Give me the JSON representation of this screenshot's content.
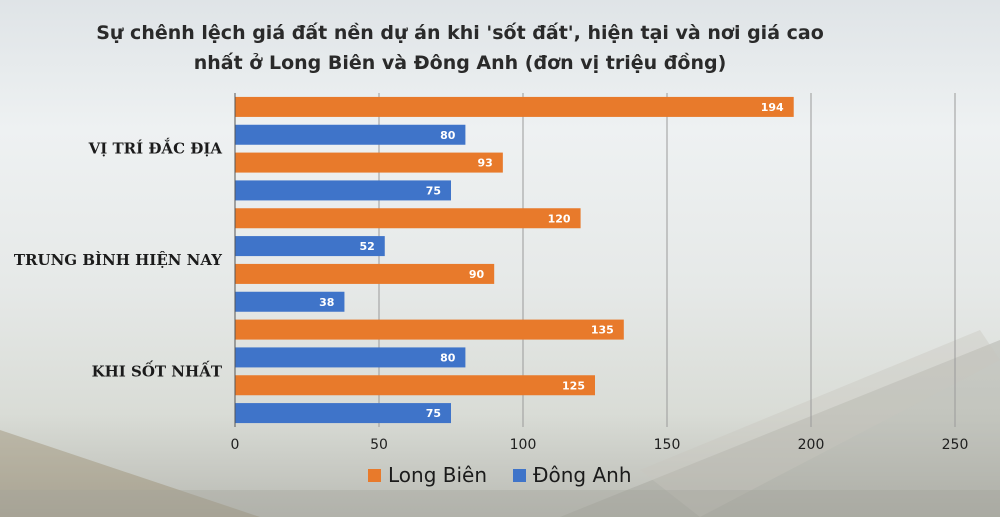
{
  "chart_data": {
    "type": "bar",
    "orientation": "horizontal",
    "title": "Sự chênh lệch giá đất nền dự án khi 'sốt đất', hiện tại và nơi giá cao nhất ở Long Biên và Đông Anh (đơn vị triệu đồng)",
    "category_labels": [
      "VỊ TRÍ ĐẮC ĐỊA",
      "TRUNG BÌNH HIỆN NAY",
      "KHI SỐT NHẤT"
    ],
    "bars": [
      {
        "series": "Long Biên",
        "value": 194
      },
      {
        "series": "Đông Anh",
        "value": 80
      },
      {
        "series": "Long Biên",
        "value": 93
      },
      {
        "series": "Đông Anh",
        "value": 75
      },
      {
        "series": "Long Biên",
        "value": 120
      },
      {
        "series": "Đông Anh",
        "value": 52
      },
      {
        "series": "Long Biên",
        "value": 90
      },
      {
        "series": "Đông Anh",
        "value": 38
      },
      {
        "series": "Long Biên",
        "value": 135
      },
      {
        "series": "Đông Anh",
        "value": 80
      },
      {
        "series": "Long Biên",
        "value": 125
      },
      {
        "series": "Đông Anh",
        "value": 75
      }
    ],
    "xlim": [
      0,
      250
    ],
    "xticks": [
      0,
      50,
      100,
      150,
      200,
      250
    ],
    "grid": "vertical",
    "legend": {
      "placement": "bottom",
      "entries": [
        {
          "name": "Long Biên",
          "color": "#e87a2b"
        },
        {
          "name": "Đông Anh",
          "color": "#3f74c9"
        }
      ]
    }
  }
}
